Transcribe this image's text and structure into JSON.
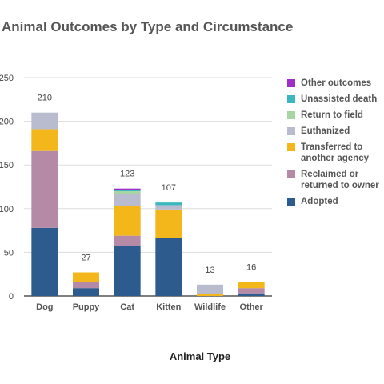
{
  "chart_data": {
    "type": "bar",
    "stacked": true,
    "title": "Animal Outcomes by Type and Circumstance",
    "xlabel": "Animal Type",
    "ylabel": "",
    "ylim": [
      0,
      250
    ],
    "yticks": [
      0,
      50,
      100,
      150,
      200,
      250
    ],
    "ytick_labels": [
      "0",
      "50",
      "100",
      "150",
      "200",
      "250"
    ],
    "grid": true,
    "legend_position": "right",
    "categories": [
      "Dog",
      "Puppy",
      "Cat",
      "Kitten",
      "Wildlife",
      "Other"
    ],
    "totals": [
      210,
      27,
      123,
      107,
      13,
      16
    ],
    "series": [
      {
        "name": "Adopted",
        "color": "#2e5b8e",
        "values": [
          78,
          9,
          57,
          66,
          0,
          3
        ]
      },
      {
        "name": "Reclaimed or returned to owner",
        "color": "#b48aa7",
        "values": [
          88,
          7,
          12,
          0,
          0,
          6
        ]
      },
      {
        "name": "Transferred to another agency",
        "color": "#f3b71c",
        "values": [
          25,
          11,
          34,
          33,
          2,
          7
        ]
      },
      {
        "name": "Euthanized",
        "color": "#b9bccf",
        "values": [
          19,
          0,
          14,
          5,
          11,
          0
        ]
      },
      {
        "name": "Return to field",
        "color": "#a8d6a3",
        "values": [
          0,
          0,
          3,
          0,
          0,
          0
        ]
      },
      {
        "name": "Unassisted death",
        "color": "#3ab7bf",
        "values": [
          0,
          0,
          1,
          3,
          0,
          0
        ]
      },
      {
        "name": "Other outcomes",
        "color": "#9d2fc4",
        "values": [
          0,
          0,
          2,
          0,
          0,
          0
        ]
      }
    ]
  }
}
